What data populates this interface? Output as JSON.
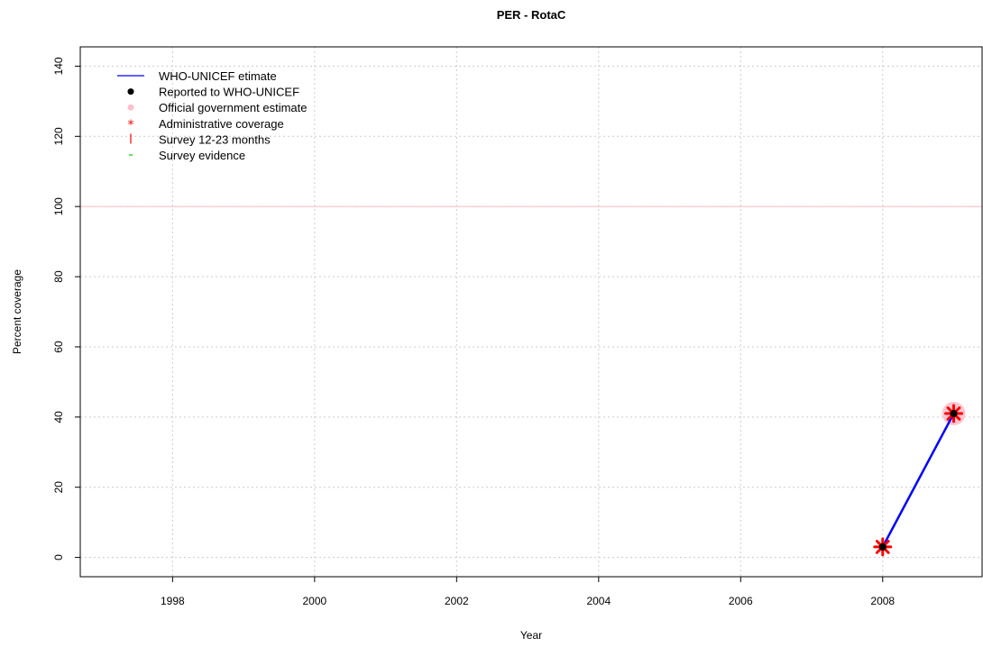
{
  "chart_data": {
    "type": "line",
    "title": "PER  -  RotaC",
    "xlabel": "Year",
    "ylabel": "Percent coverage",
    "xlim": [
      1996.7,
      2009.4
    ],
    "ylim": [
      -5.5,
      145.5
    ],
    "x_ticks": [
      1998,
      2000,
      2002,
      2004,
      2006,
      2008
    ],
    "y_ticks": [
      0,
      20,
      40,
      60,
      80,
      100,
      120,
      140
    ],
    "grid": true,
    "reference_line": {
      "y": 100,
      "color": "#ffc0cb"
    },
    "legend": {
      "placement": "top-left",
      "entries": [
        {
          "label": "WHO-UNICEF etimate",
          "symbol": "line",
          "color": "#0000ff"
        },
        {
          "label": "Reported to WHO-UNICEF",
          "symbol": "dot",
          "color": "#000000"
        },
        {
          "label": "Official government estimate",
          "symbol": "dot",
          "color": "#ffc0cb"
        },
        {
          "label": "Administrative coverage",
          "symbol": "star",
          "color": "#ff0000"
        },
        {
          "label": "Survey 12-23 months",
          "symbol": "bar",
          "color": "#ff0000"
        },
        {
          "label": "Survey evidence",
          "symbol": "dash",
          "color": "#00cc00"
        }
      ]
    },
    "series": [
      {
        "name": "WHO-UNICEF etimate",
        "color": "#0000ff",
        "x": [
          2008,
          2009
        ],
        "y": [
          3,
          41
        ]
      },
      {
        "name": "Reported to WHO-UNICEF",
        "color": "#000000",
        "x": [
          2008,
          2009
        ],
        "y": [
          3,
          41
        ]
      },
      {
        "name": "Official government estimate",
        "color": "#ffc0cb",
        "x": [
          2009
        ],
        "y": [
          41
        ]
      },
      {
        "name": "Administrative coverage",
        "color": "#ff0000",
        "x": [
          2008,
          2009
        ],
        "y": [
          3,
          41
        ]
      }
    ]
  }
}
